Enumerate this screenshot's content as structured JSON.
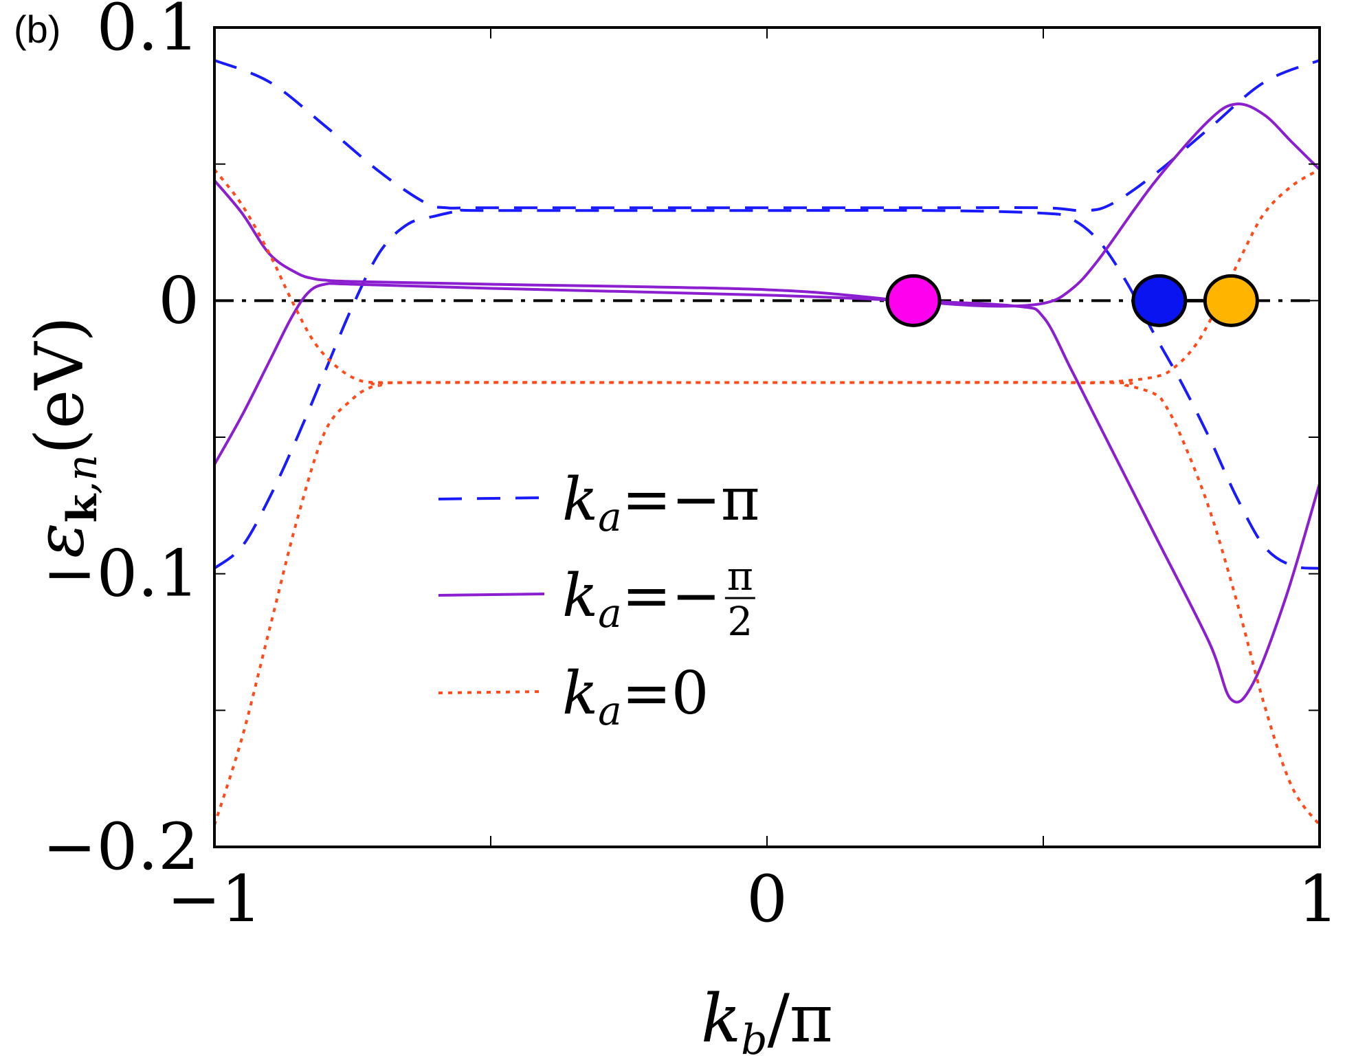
{
  "panel_label": "(b)",
  "chart_data": {
    "type": "line",
    "xlabel": "k_b/π",
    "ylabel": "ε_k,n (eV)",
    "xlim": [
      -1,
      1
    ],
    "ylim": [
      -0.2,
      0.1
    ],
    "x_ticks": [
      -1,
      -0.5,
      0,
      0.5,
      1
    ],
    "x_tick_labels": [
      "−1",
      "",
      "0",
      "",
      "1"
    ],
    "y_ticks": [
      -0.2,
      -0.15,
      -0.1,
      -0.05,
      0,
      0.05,
      0.1
    ],
    "y_tick_labels": [
      "−0.2",
      "",
      "−0.1",
      "",
      "0",
      "",
      "0.1"
    ],
    "fermi_level": 0,
    "legend_position": "lower-center",
    "series": [
      {
        "name": "k_a=−π",
        "color": "#1a1aff",
        "style": "dashed",
        "bands": [
          {
            "x": [
              -1,
              -0.9,
              -0.8,
              -0.7,
              -0.62,
              -0.58,
              -0.5,
              0,
              0.3,
              0.5,
              0.57,
              0.62,
              0.7,
              0.8,
              0.9,
              1
            ],
            "y": [
              0.088,
              0.08,
              0.064,
              0.047,
              0.036,
              0.034,
              0.034,
              0.034,
              0.034,
              0.034,
              0.033,
              0.035,
              0.046,
              0.063,
              0.08,
              0.088
            ]
          },
          {
            "x": [
              -1,
              -0.95,
              -0.9,
              -0.85,
              -0.8,
              -0.75,
              -0.7,
              -0.65,
              -0.6,
              -0.55,
              -0.5,
              0,
              0.3,
              0.5,
              0.55,
              0.6,
              0.65,
              0.7,
              0.75,
              0.8,
              0.85,
              0.9,
              0.95,
              1
            ],
            "y": [
              -0.098,
              -0.09,
              -0.072,
              -0.05,
              -0.026,
              -0.002,
              0.018,
              0.028,
              0.031,
              0.033,
              0.033,
              0.033,
              0.033,
              0.032,
              0.03,
              0.022,
              0.007,
              -0.012,
              -0.03,
              -0.05,
              -0.072,
              -0.09,
              -0.097,
              -0.098
            ]
          }
        ]
      },
      {
        "name": "k_a=−π/2",
        "color": "#8b1fd0",
        "style": "solid",
        "bands": [
          {
            "x": [
              -1,
              -0.95,
              -0.9,
              -0.85,
              -0.82,
              -0.8,
              -0.75,
              -0.5,
              0,
              0.25,
              0.4,
              0.5,
              0.55,
              0.6,
              0.7,
              0.8,
              0.85,
              0.9,
              0.95,
              1
            ],
            "y": [
              0.044,
              0.032,
              0.017,
              0.01,
              0.008,
              0.0075,
              0.007,
              0.006,
              0.004,
              0.0,
              -0.002,
              -0.001,
              0.004,
              0.015,
              0.043,
              0.066,
              0.072,
              0.068,
              0.058,
              0.048
            ]
          },
          {
            "x": [
              -1,
              -0.95,
              -0.9,
              -0.86,
              -0.83,
              -0.8,
              -0.75,
              -0.5,
              0,
              0.25,
              0.45,
              0.5,
              0.55,
              0.6,
              0.7,
              0.8,
              0.84,
              0.88,
              0.94,
              1
            ],
            "y": [
              -0.06,
              -0.042,
              -0.022,
              -0.006,
              0.003,
              0.006,
              0.006,
              0.0045,
              0.002,
              0.0,
              -0.002,
              -0.006,
              -0.025,
              -0.045,
              -0.085,
              -0.125,
              -0.146,
              -0.14,
              -0.108,
              -0.067
            ]
          }
        ]
      },
      {
        "name": "k_a=0",
        "color": "#ff4a1a",
        "style": "dotted",
        "bands": [
          {
            "x": [
              -1,
              -0.95,
              -0.9,
              -0.86,
              -0.82,
              -0.78,
              -0.74,
              -0.7,
              -0.6,
              0,
              0.5,
              0.6,
              0.7,
              0.74,
              0.78,
              0.82,
              0.86,
              0.9,
              0.95,
              1
            ],
            "y": [
              0.048,
              0.035,
              0.017,
              0.0,
              -0.015,
              -0.024,
              -0.029,
              -0.03,
              -0.03,
              -0.03,
              -0.03,
              -0.03,
              -0.028,
              -0.024,
              -0.015,
              0.0,
              0.017,
              0.032,
              0.042,
              0.048
            ]
          },
          {
            "x": [
              -1,
              -0.95,
              -0.9,
              -0.85,
              -0.8,
              -0.75,
              -0.72,
              -0.7,
              -0.65,
              0,
              0.6,
              0.65,
              0.7,
              0.72,
              0.75,
              0.8,
              0.85,
              0.9,
              0.95,
              1
            ],
            "y": [
              -0.192,
              -0.16,
              -0.12,
              -0.08,
              -0.048,
              -0.036,
              -0.032,
              -0.031,
              -0.03,
              -0.03,
              -0.03,
              -0.031,
              -0.034,
              -0.038,
              -0.05,
              -0.076,
              -0.11,
              -0.148,
              -0.178,
              -0.192
            ]
          }
        ]
      }
    ],
    "markers": [
      {
        "x": 0.265,
        "y": 0,
        "color": "#ff00ee"
      },
      {
        "x": 0.71,
        "y": 0,
        "color": "#0a14f0"
      },
      {
        "x": 0.84,
        "y": 0,
        "color": "#ffb400"
      }
    ]
  }
}
